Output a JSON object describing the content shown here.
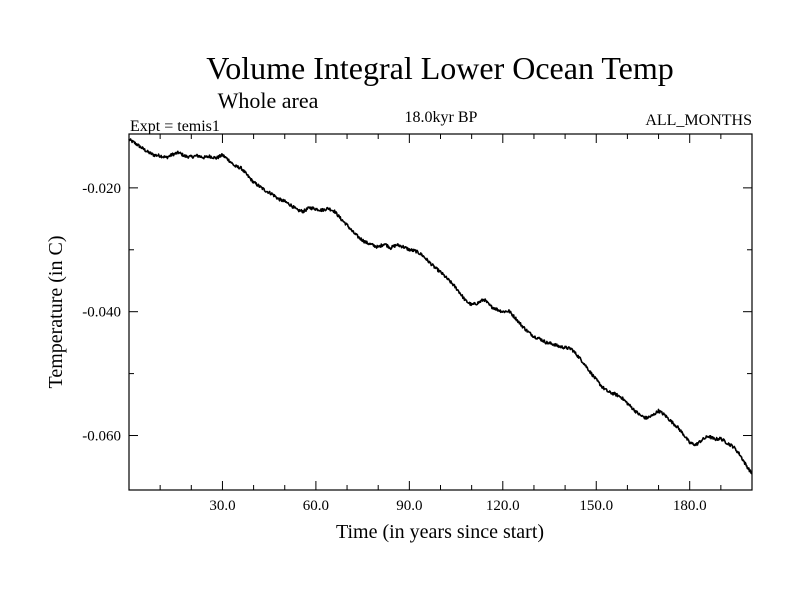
{
  "chart_data": {
    "type": "line",
    "title": "Volume Integral Lower Ocean Temp",
    "subtitle": "Whole area",
    "header_left": "Expt = temis1",
    "header_center": "18.0kyr BP",
    "header_right": "ALL_MONTHS",
    "xlabel": "Time (in years since start)",
    "ylabel": "Temperature (in C)",
    "xlim": [
      0,
      200
    ],
    "ylim": [
      -0.0688,
      -0.0113
    ],
    "x_ticks": [
      {
        "value": 30,
        "label": "30.0"
      },
      {
        "value": 60,
        "label": "60.0"
      },
      {
        "value": 90,
        "label": "90.0"
      },
      {
        "value": 120,
        "label": "120.0"
      },
      {
        "value": 150,
        "label": "150.0"
      },
      {
        "value": 180,
        "label": "180.0"
      }
    ],
    "y_ticks": [
      {
        "value": -0.02,
        "label": "-0.020"
      },
      {
        "value": -0.04,
        "label": "-0.040"
      },
      {
        "value": -0.06,
        "label": "-0.060"
      }
    ],
    "grid": false,
    "line_color": "#000000",
    "series": [
      {
        "name": "Volume Integral Lower Ocean Temp",
        "x": [
          0,
          2,
          4,
          6,
          8,
          10,
          12,
          14,
          16,
          18,
          20,
          22,
          24,
          26,
          28,
          30,
          32,
          34,
          36,
          38,
          40,
          42,
          44,
          46,
          48,
          50,
          52,
          54,
          56,
          58,
          60,
          62,
          64,
          66,
          68,
          70,
          72,
          74,
          76,
          78,
          80,
          82,
          84,
          86,
          88,
          90,
          92,
          94,
          96,
          98,
          100,
          102,
          104,
          106,
          108,
          110,
          112,
          114,
          116,
          118,
          120,
          122,
          124,
          126,
          128,
          130,
          132,
          134,
          136,
          138,
          140,
          142,
          144,
          146,
          148,
          150,
          152,
          154,
          156,
          158,
          160,
          162,
          164,
          166,
          168,
          170,
          172,
          174,
          176,
          178,
          180,
          182,
          184,
          186,
          188,
          190,
          192,
          194,
          196,
          198,
          200
        ],
        "values": [
          -0.0122,
          -0.0128,
          -0.0135,
          -0.0142,
          -0.0147,
          -0.0148,
          -0.0151,
          -0.0146,
          -0.0143,
          -0.0149,
          -0.015,
          -0.0148,
          -0.0151,
          -0.0149,
          -0.0152,
          -0.0147,
          -0.0155,
          -0.0165,
          -0.0168,
          -0.018,
          -0.0191,
          -0.0198,
          -0.0205,
          -0.021,
          -0.0218,
          -0.0222,
          -0.0228,
          -0.0236,
          -0.0238,
          -0.0232,
          -0.0234,
          -0.0236,
          -0.0233,
          -0.0238,
          -0.025,
          -0.026,
          -0.0272,
          -0.0281,
          -0.0288,
          -0.0292,
          -0.0296,
          -0.029,
          -0.0297,
          -0.0292,
          -0.0295,
          -0.03,
          -0.0302,
          -0.0308,
          -0.0318,
          -0.0328,
          -0.0336,
          -0.0346,
          -0.0356,
          -0.0368,
          -0.0382,
          -0.0389,
          -0.0386,
          -0.038,
          -0.0391,
          -0.0396,
          -0.04,
          -0.0399,
          -0.041,
          -0.0422,
          -0.0432,
          -0.044,
          -0.0444,
          -0.045,
          -0.0452,
          -0.0456,
          -0.0458,
          -0.046,
          -0.0471,
          -0.0483,
          -0.0497,
          -0.051,
          -0.0522,
          -0.053,
          -0.0533,
          -0.0538,
          -0.0548,
          -0.0558,
          -0.0567,
          -0.0572,
          -0.0568,
          -0.056,
          -0.0567,
          -0.0577,
          -0.0586,
          -0.0598,
          -0.0612,
          -0.0615,
          -0.0607,
          -0.0601,
          -0.0606,
          -0.0605,
          -0.0612,
          -0.0618,
          -0.063,
          -0.0647,
          -0.0662
        ]
      }
    ]
  }
}
